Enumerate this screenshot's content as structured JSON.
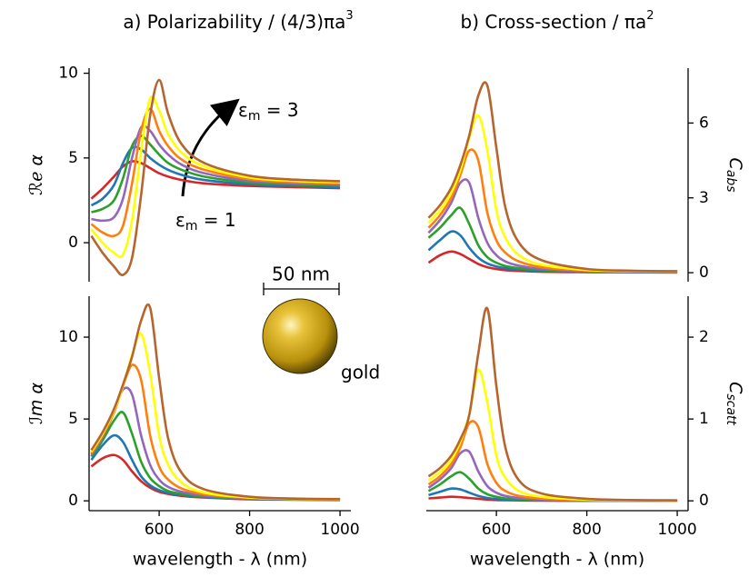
{
  "chart_data": [
    {
      "type": "line",
      "title": {
        "text": "a)  Polarizability / (4/3)πa",
        "sup": "3"
      },
      "y_label": {
        "main": "ℛℯ α"
      },
      "y_axis": "left",
      "annotations": [
        {
          "text": "ε",
          "sub": "m",
          "tail": " = 3"
        },
        {
          "text": "ε",
          "sub": "m",
          "tail": " = 1"
        }
      ],
      "x": [
        450,
        475,
        500,
        520,
        540,
        560,
        580,
        600,
        620,
        650,
        700,
        800,
        900,
        1000
      ],
      "xlim": [
        445,
        1024
      ],
      "ylim": [
        -2.3,
        10.3
      ],
      "yticks": [
        0,
        5,
        10
      ],
      "series": [
        {
          "color": "#d62728",
          "values": [
            2.6,
            3.2,
            3.9,
            4.5,
            4.8,
            4.7,
            4.4,
            4.1,
            3.9,
            3.7,
            3.5,
            3.35,
            3.28,
            3.22
          ]
        },
        {
          "color": "#1f77b4",
          "values": [
            2.2,
            2.6,
            3.4,
            4.7,
            5.6,
            5.5,
            5.0,
            4.6,
            4.3,
            4.0,
            3.7,
            3.45,
            3.35,
            3.28
          ]
        },
        {
          "color": "#2ca02c",
          "values": [
            1.8,
            2.0,
            2.5,
            3.8,
            5.7,
            6.3,
            5.8,
            5.2,
            4.7,
            4.3,
            3.9,
            3.55,
            3.42,
            3.35
          ]
        },
        {
          "color": "#9467bd",
          "values": [
            1.4,
            1.3,
            1.5,
            2.6,
            5.0,
            6.8,
            6.6,
            5.8,
            5.2,
            4.6,
            4.1,
            3.65,
            3.5,
            3.42
          ]
        },
        {
          "color": "#ff7f0e",
          "values": [
            1.1,
            0.6,
            0.4,
            1.0,
            3.5,
            6.6,
            7.9,
            6.6,
            5.7,
            4.9,
            4.3,
            3.75,
            3.57,
            3.5
          ]
        },
        {
          "color": "#ffff00",
          "values": [
            0.8,
            0.0,
            -0.6,
            -0.7,
            1.3,
            5.4,
            8.5,
            7.8,
            6.4,
            5.3,
            4.5,
            3.85,
            3.65,
            3.57
          ]
        },
        {
          "color": "#b5652e",
          "values": [
            0.4,
            -0.6,
            -1.4,
            -1.9,
            -0.9,
            2.8,
            7.5,
            9.6,
            7.6,
            5.8,
            4.7,
            3.95,
            3.72,
            3.63
          ]
        }
      ]
    },
    {
      "type": "line",
      "title": {
        "text": "b)  Cross-section / πa",
        "sup": "2"
      },
      "y_label": {
        "main": "C",
        "sub": "abs"
      },
      "y_axis": "right",
      "x": [
        450,
        475,
        500,
        520,
        540,
        560,
        580,
        600,
        620,
        650,
        700,
        800,
        900,
        1000
      ],
      "xlim": [
        445,
        1024
      ],
      "ylim": [
        -0.36,
        8.2
      ],
      "yticks": [
        0,
        3,
        6
      ],
      "series": [
        {
          "color": "#d62728",
          "values": [
            0.4,
            0.7,
            0.85,
            0.75,
            0.55,
            0.35,
            0.22,
            0.15,
            0.1,
            0.07,
            0.04,
            0.02,
            0.01,
            0.01
          ]
        },
        {
          "color": "#1f77b4",
          "values": [
            0.9,
            1.3,
            1.65,
            1.5,
            1.0,
            0.6,
            0.37,
            0.25,
            0.18,
            0.12,
            0.07,
            0.03,
            0.02,
            0.01
          ]
        },
        {
          "color": "#2ca02c",
          "values": [
            1.4,
            1.8,
            2.3,
            2.6,
            1.95,
            1.1,
            0.62,
            0.4,
            0.27,
            0.18,
            0.1,
            0.04,
            0.03,
            0.02
          ]
        },
        {
          "color": "#9467bd",
          "values": [
            1.6,
            2.1,
            2.8,
            3.6,
            3.6,
            2.2,
            1.2,
            0.7,
            0.45,
            0.28,
            0.15,
            0.06,
            0.04,
            0.03
          ]
        },
        {
          "color": "#ff7f0e",
          "values": [
            1.8,
            2.3,
            3.0,
            3.9,
            4.9,
            4.5,
            2.4,
            1.3,
            0.8,
            0.45,
            0.22,
            0.08,
            0.05,
            0.04
          ]
        },
        {
          "color": "#ffff00",
          "values": [
            2.0,
            2.5,
            3.2,
            4.1,
            5.4,
            6.3,
            4.9,
            2.5,
            1.4,
            0.7,
            0.32,
            0.11,
            0.06,
            0.05
          ]
        },
        {
          "color": "#b5652e",
          "values": [
            2.2,
            2.7,
            3.4,
            4.3,
            5.5,
            7.1,
            7.5,
            5.0,
            2.6,
            1.2,
            0.5,
            0.15,
            0.08,
            0.06
          ]
        }
      ]
    },
    {
      "type": "line",
      "y_label": {
        "main": "ℐm α"
      },
      "y_axis": "left",
      "x_label": "wavelength - λ (nm)",
      "x": [
        450,
        475,
        500,
        520,
        540,
        560,
        580,
        600,
        620,
        650,
        700,
        800,
        900,
        1000
      ],
      "xlim": [
        445,
        1024
      ],
      "ylim": [
        -0.6,
        12.5
      ],
      "xticks": [
        600,
        800,
        1000
      ],
      "yticks": [
        0,
        5,
        10
      ],
      "series": [
        {
          "color": "#d62728",
          "values": [
            2.1,
            2.6,
            2.8,
            2.5,
            1.8,
            1.2,
            0.8,
            0.55,
            0.42,
            0.3,
            0.2,
            0.1,
            0.07,
            0.05
          ]
        },
        {
          "color": "#1f77b4",
          "values": [
            2.5,
            3.4,
            4.0,
            3.6,
            2.5,
            1.5,
            0.95,
            0.65,
            0.48,
            0.35,
            0.22,
            0.12,
            0.08,
            0.06
          ]
        },
        {
          "color": "#2ca02c",
          "values": [
            2.7,
            3.7,
            4.9,
            5.4,
            4.1,
            2.4,
            1.4,
            0.9,
            0.6,
            0.42,
            0.26,
            0.14,
            0.09,
            0.07
          ]
        },
        {
          "color": "#9467bd",
          "values": [
            2.8,
            3.9,
            5.4,
            6.8,
            6.5,
            4.0,
            2.2,
            1.3,
            0.85,
            0.55,
            0.32,
            0.16,
            0.1,
            0.08
          ]
        },
        {
          "color": "#ff7f0e",
          "values": [
            2.9,
            4.0,
            5.4,
            7.0,
            8.3,
            7.4,
            4.0,
            2.1,
            1.3,
            0.75,
            0.4,
            0.18,
            0.11,
            0.09
          ]
        },
        {
          "color": "#ffff00",
          "values": [
            3.0,
            4.1,
            5.5,
            7.0,
            8.9,
            10.2,
            7.8,
            4.0,
            2.2,
            1.1,
            0.5,
            0.2,
            0.12,
            0.1
          ]
        },
        {
          "color": "#b5652e",
          "values": [
            3.1,
            4.2,
            5.6,
            7.1,
            8.8,
            11.0,
            11.8,
            7.5,
            3.8,
            1.7,
            0.7,
            0.25,
            0.14,
            0.11
          ]
        }
      ]
    },
    {
      "type": "line",
      "y_label": {
        "main": "C",
        "sub": "scatt"
      },
      "y_axis": "right",
      "x_label": "wavelength - λ (nm)",
      "x": [
        450,
        475,
        500,
        520,
        540,
        560,
        580,
        600,
        620,
        650,
        700,
        800,
        900,
        1000
      ],
      "xlim": [
        445,
        1024
      ],
      "ylim": [
        -0.12,
        2.5
      ],
      "xticks": [
        600,
        800,
        1000
      ],
      "yticks": [
        0,
        1,
        2
      ],
      "series": [
        {
          "color": "#d62728",
          "values": [
            0.03,
            0.04,
            0.05,
            0.045,
            0.035,
            0.025,
            0.015,
            0.01,
            0.008,
            0.005,
            0.003,
            0.001,
            0.001,
            0
          ]
        },
        {
          "color": "#1f77b4",
          "values": [
            0.07,
            0.11,
            0.15,
            0.14,
            0.1,
            0.06,
            0.035,
            0.022,
            0.015,
            0.01,
            0.005,
            0.002,
            0.001,
            0.001
          ]
        },
        {
          "color": "#2ca02c",
          "values": [
            0.12,
            0.2,
            0.3,
            0.35,
            0.27,
            0.15,
            0.08,
            0.05,
            0.03,
            0.02,
            0.01,
            0.004,
            0.002,
            0.001
          ]
        },
        {
          "color": "#9467bd",
          "values": [
            0.16,
            0.26,
            0.4,
            0.58,
            0.6,
            0.36,
            0.18,
            0.1,
            0.06,
            0.035,
            0.017,
            0.006,
            0.003,
            0.002
          ]
        },
        {
          "color": "#ff7f0e",
          "values": [
            0.2,
            0.3,
            0.45,
            0.65,
            0.95,
            0.9,
            0.45,
            0.22,
            0.12,
            0.06,
            0.028,
            0.009,
            0.004,
            0.003
          ]
        },
        {
          "color": "#ffff00",
          "values": [
            0.25,
            0.35,
            0.5,
            0.72,
            1.05,
            1.6,
            1.2,
            0.55,
            0.28,
            0.12,
            0.05,
            0.015,
            0.007,
            0.004
          ]
        },
        {
          "color": "#b5652e",
          "values": [
            0.3,
            0.4,
            0.55,
            0.75,
            1.05,
            1.8,
            2.35,
            1.4,
            0.65,
            0.25,
            0.09,
            0.025,
            0.01,
            0.006
          ]
        }
      ]
    }
  ],
  "inset": {
    "scale_bar": "50 nm",
    "label": "gold"
  }
}
